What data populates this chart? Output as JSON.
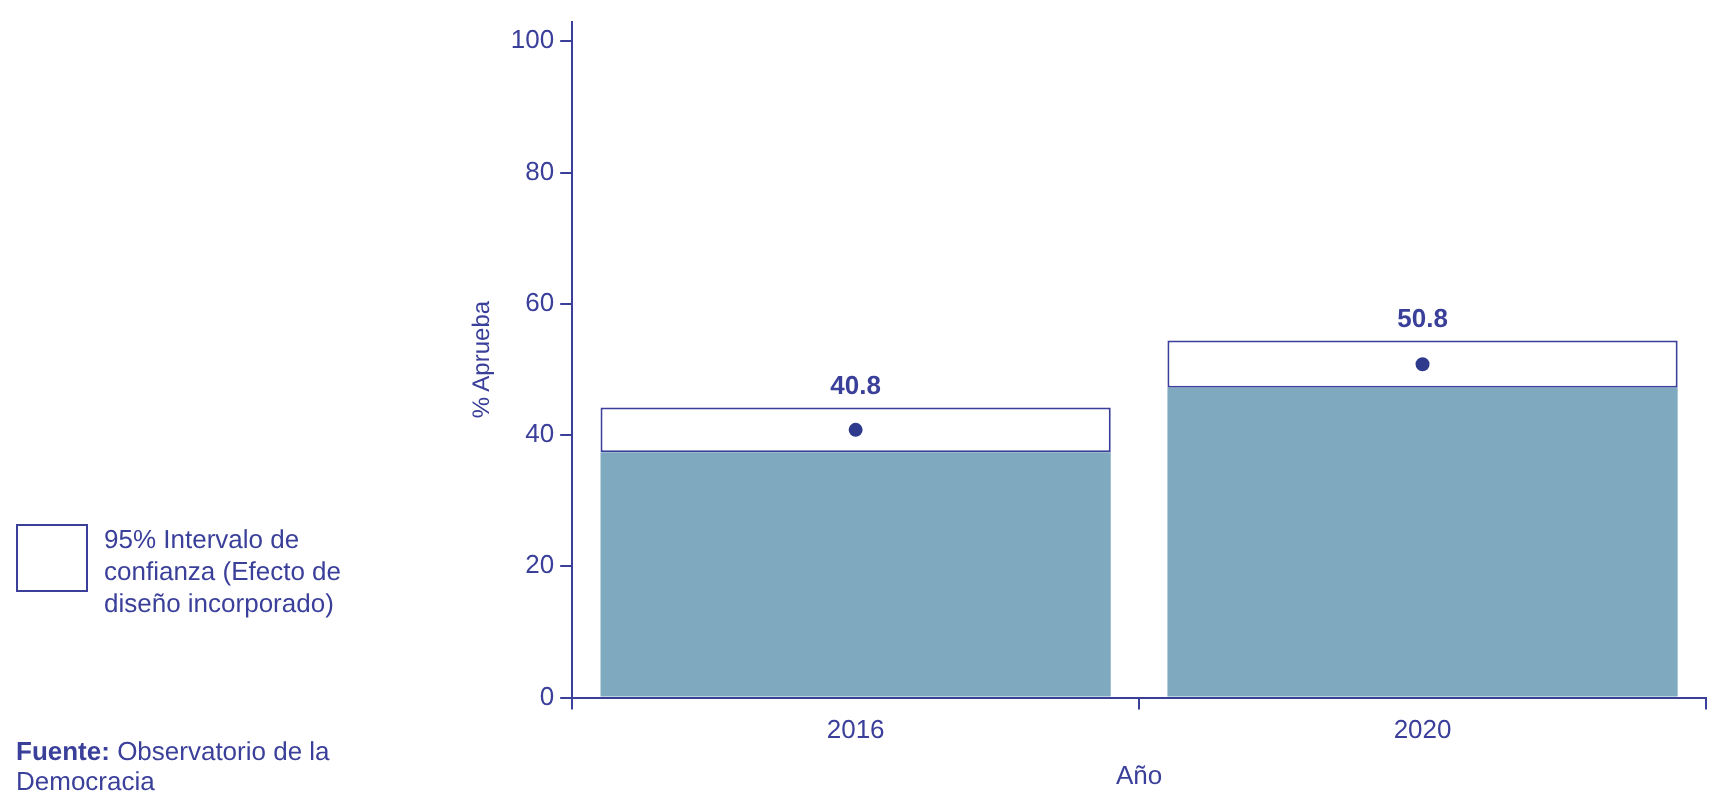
{
  "chart_data": {
    "type": "bar",
    "stacked": true,
    "xlabel": "Año",
    "ylabel": "% Aprueba",
    "categories": [
      "2016",
      "2020"
    ],
    "series": [
      {
        "color": "#7ea9bf",
        "values": [
          37.4,
          47.2
        ]
      },
      {
        "name": "95% Intervalo de confianza (Efecto de diseño incorporado)",
        "color": "#ffffff",
        "values": [
          6.8,
          7.2
        ]
      },
      {
        "type": "scatter",
        "color": "#2e3a8c",
        "values": [
          40.8,
          50.8
        ],
        "value_labels": [
          "40.8",
          "50.8"
        ]
      }
    ],
    "ylim": [
      0,
      103
    ],
    "yticks": [
      0,
      20,
      40,
      60,
      80,
      100
    ],
    "marker": "circle",
    "legend": "left",
    "annotations": [
      "Fuente: Observatorio de la Democracia"
    ]
  }
}
